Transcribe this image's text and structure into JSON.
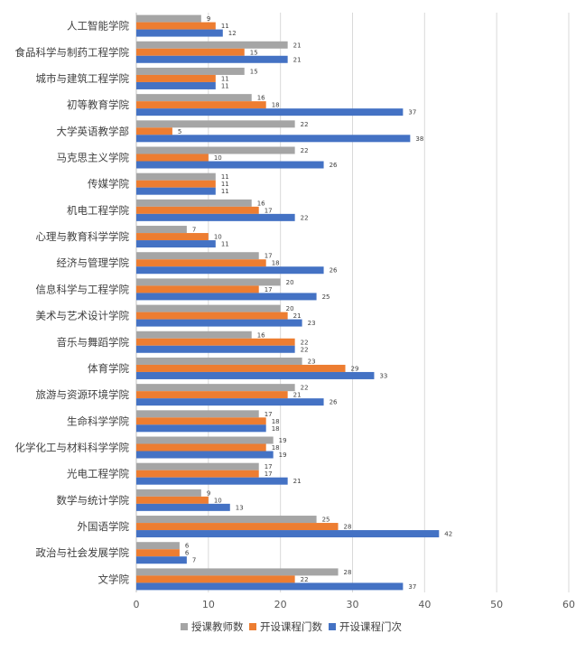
{
  "chart_data": {
    "type": "bar",
    "orientation": "horizontal",
    "categories": [
      "人工智能学院",
      "食品科学与制药工程学院",
      "城市与建筑工程学院",
      "初等教育学院",
      "大学英语教学部",
      "马克思主义学院",
      "传媒学院",
      "机电工程学院",
      "心理与教育科学学院",
      "经济与管理学院",
      "信息科学与工程学院",
      "美术与艺术设计学院",
      "音乐与舞蹈学院",
      "体育学院",
      "旅游与资源环境学院",
      "生命科学学院",
      "化学化工与材料科学学院",
      "光电工程学院",
      "数学与统计学院",
      "外国语学院",
      "政治与社会发展学院",
      "文学院"
    ],
    "series": [
      {
        "name": "授课教师数",
        "color": "#a5a5a5",
        "values": [
          9,
          21,
          15,
          16,
          22,
          22,
          11,
          16,
          7,
          17,
          20,
          20,
          16,
          23,
          22,
          17,
          19,
          17,
          9,
          25,
          6,
          28
        ]
      },
      {
        "name": "开设课程门数",
        "color": "#ed7d31",
        "values": [
          11,
          15,
          11,
          18,
          5,
          10,
          11,
          17,
          10,
          18,
          17,
          21,
          22,
          29,
          21,
          18,
          18,
          17,
          10,
          28,
          6,
          22
        ]
      },
      {
        "name": "开设课程门次",
        "color": "#4472c4",
        "values": [
          12,
          21,
          11,
          37,
          38,
          26,
          11,
          22,
          11,
          26,
          25,
          23,
          22,
          33,
          26,
          18,
          19,
          21,
          13,
          42,
          7,
          37
        ]
      }
    ],
    "xlim": [
      0,
      60
    ],
    "x_ticks": [
      0,
      10,
      20,
      30,
      40,
      50,
      60
    ],
    "grid": true,
    "legend_position": "bottom",
    "data_labels": true,
    "title": "",
    "xlabel": "",
    "ylabel": ""
  }
}
